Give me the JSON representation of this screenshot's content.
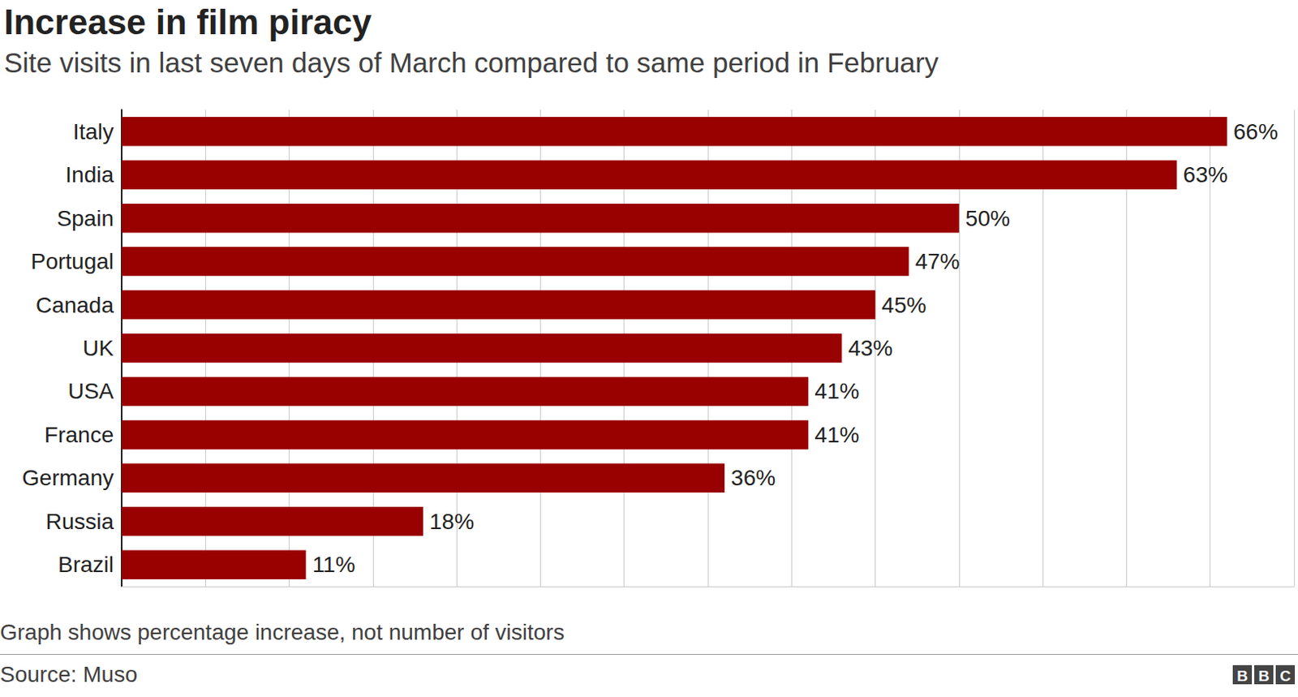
{
  "chart_data": {
    "type": "bar",
    "title": "Increase in film piracy",
    "subtitle": "Site visits in last seven days of March compared to same period in February",
    "note": "Graph shows percentage increase, not number of visitors",
    "source": "Source: Muso",
    "brand": "BBC",
    "orientation": "horizontal",
    "categories": [
      "Italy",
      "India",
      "Spain",
      "Portugal",
      "Canada",
      "UK",
      "USA",
      "France",
      "Germany",
      "Russia",
      "Brazil"
    ],
    "values": [
      66,
      63,
      50,
      47,
      45,
      43,
      41,
      41,
      36,
      18,
      11
    ],
    "value_labels": [
      "66%",
      "63%",
      "50%",
      "47%",
      "45%",
      "43%",
      "41%",
      "41%",
      "36%",
      "18%",
      "11%"
    ],
    "color": "#990000",
    "xlim": [
      0,
      70
    ],
    "xticks": [
      0,
      5,
      10,
      15,
      20,
      25,
      30,
      35,
      40,
      45,
      50,
      55,
      60,
      65,
      70
    ],
    "grid": true,
    "data_labels": true,
    "tick_labels": "y"
  }
}
